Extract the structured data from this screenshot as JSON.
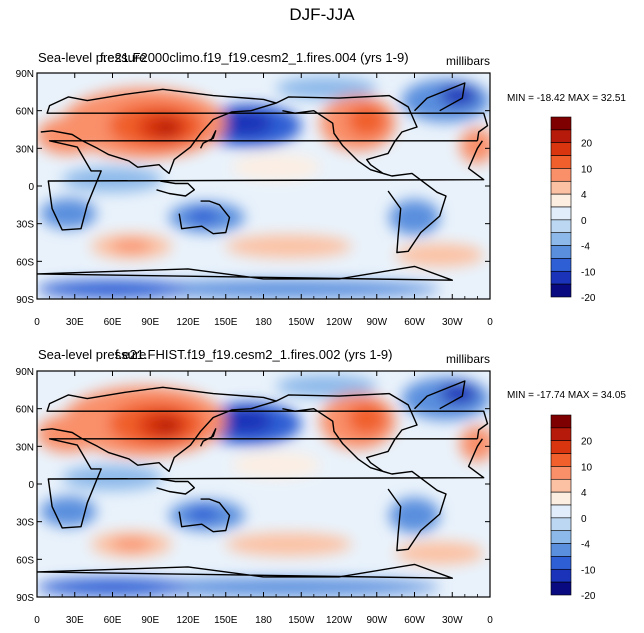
{
  "figure": {
    "title": "DJF-JJA"
  },
  "chart_data": [
    {
      "type": "heatmap",
      "title": "Sea-level pressure",
      "case_name": "f.e21.F2000climo.f19_f19.cesm2_1.fires.004 (yrs 1-9)",
      "units": "millibars",
      "stats": "MIN = -18.42 MAX =  32.51",
      "min": -18.42,
      "max": 32.51,
      "y_ticks": [
        "90N",
        "60N",
        "30N",
        "0",
        "30S",
        "60S",
        "90S"
      ],
      "x_ticks": [
        "0",
        "30E",
        "60E",
        "90E",
        "120E",
        "150E",
        "180",
        "150W",
        "120W",
        "90W",
        "60W",
        "30W",
        "0"
      ],
      "xlim": [
        0,
        360
      ],
      "ylim": [
        -90,
        90
      ]
    },
    {
      "type": "heatmap",
      "title": "Sea-level pressure",
      "case_name": "f.e21.FHIST.f19_f19.cesm2_1.fires.002 (yrs 1-9)",
      "units": "millibars",
      "stats": "MIN = -17.74 MAX =  34.05",
      "min": -17.74,
      "max": 34.05,
      "y_ticks": [
        "90N",
        "60N",
        "30N",
        "0",
        "30S",
        "60S",
        "90S"
      ],
      "x_ticks": [
        "0",
        "30E",
        "60E",
        "90E",
        "120E",
        "150E",
        "180",
        "150W",
        "120W",
        "90W",
        "60W",
        "30W",
        "0"
      ],
      "xlim": [
        0,
        360
      ],
      "ylim": [
        -90,
        90
      ]
    }
  ],
  "colorbar": {
    "labels": [
      "20",
      "10",
      "4",
      "0",
      "-4",
      "-10",
      "-20"
    ],
    "colors": [
      "#7f0000",
      "#b51a0a",
      "#d9360f",
      "#f05f2c",
      "#f9906a",
      "#fcc1a3",
      "#fdeee2",
      "#e1edfa",
      "#bcd7f2",
      "#8db9ea",
      "#5a8fde",
      "#2f5fd4",
      "#1a33b8",
      "#0a0a80"
    ]
  }
}
